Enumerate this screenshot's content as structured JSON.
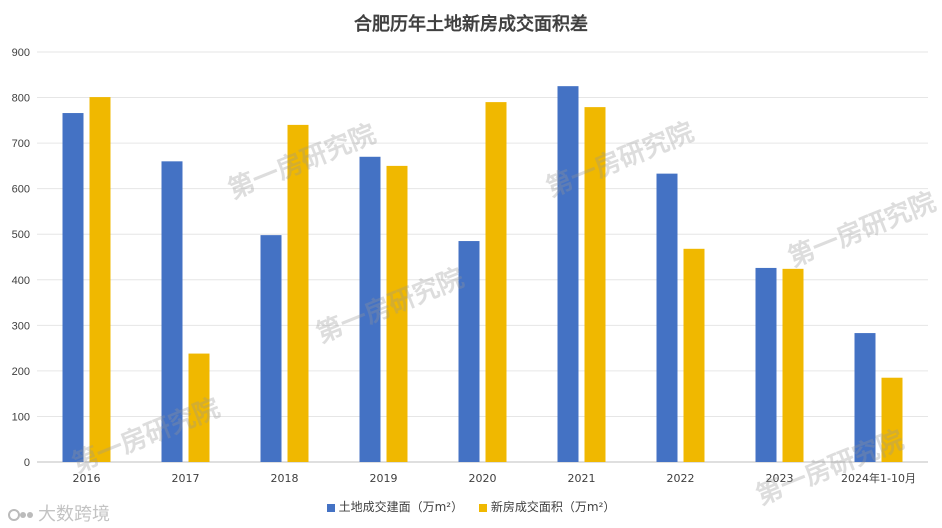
{
  "chart_data": {
    "type": "bar",
    "title": "合肥历年土地新房成交面积差",
    "categories": [
      "2016",
      "2017",
      "2018",
      "2019",
      "2020",
      "2021",
      "2022",
      "2023",
      "2024年1-10月"
    ],
    "series": [
      {
        "name": "土地成交建面（万m²）",
        "color": "#4472C4",
        "values": [
          766,
          660,
          498,
          670,
          485,
          825,
          633,
          426,
          283
        ]
      },
      {
        "name": "新房成交面积（万m²）",
        "color": "#F0B800",
        "values": [
          801,
          238,
          740,
          650,
          790,
          779,
          468,
          424,
          185
        ]
      }
    ],
    "ylim": [
      0,
      900
    ],
    "yticks": [
      "0",
      "100",
      "200",
      "300",
      "400",
      "500",
      "600",
      "700",
      "800",
      "900"
    ],
    "grid": true,
    "legend_position": "bottom-center"
  },
  "watermarks": [
    "第一房研究院",
    "第一房研究院",
    "第一房研究院",
    "第一房研究院",
    "第一房研究院",
    "第一房研究院"
  ],
  "brand": {
    "text": "大数跨境",
    "icon": "brand-logo-icon"
  }
}
